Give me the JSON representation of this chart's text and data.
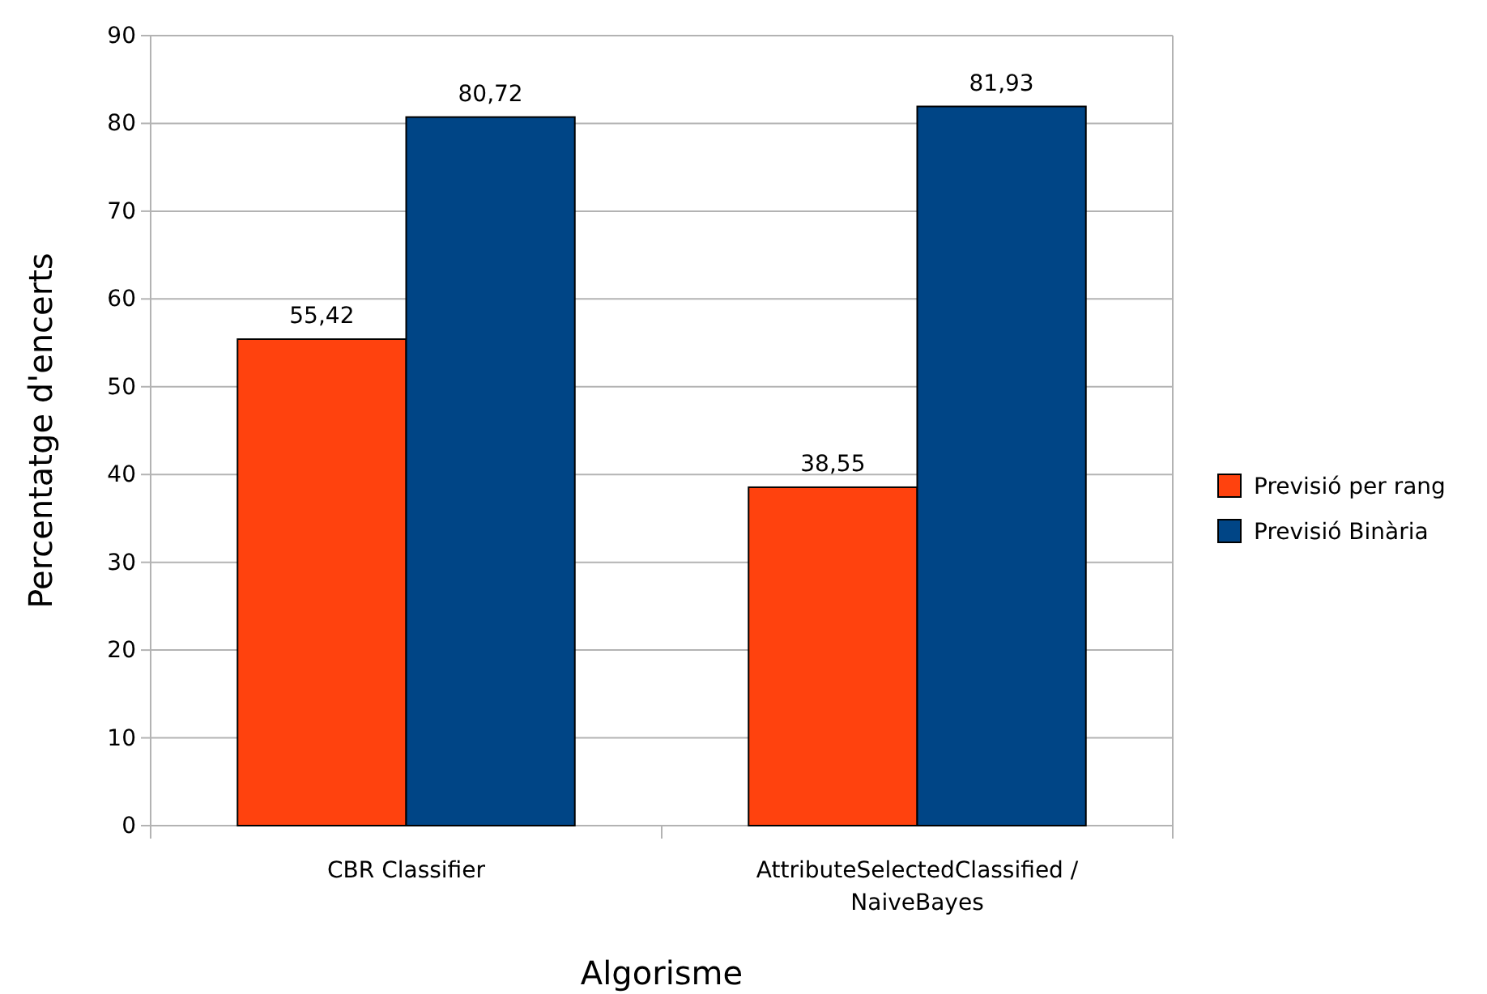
{
  "chart_data": {
    "type": "bar",
    "xlabel": "Algorisme",
    "ylabel": "Percentatge d'encerts",
    "categories": [
      "CBR Classifier",
      "AttributeSelectedClassified / NaiveBayes"
    ],
    "series": [
      {
        "name": "Previsió per rang",
        "color": "#ff420e",
        "values": [
          55.42,
          38.55
        ],
        "value_labels": [
          "55,42",
          "38,55"
        ]
      },
      {
        "name": "Previsió Binària",
        "color": "#004586",
        "values": [
          80.72,
          81.93
        ],
        "value_labels": [
          "80,72",
          "81,93"
        ]
      }
    ],
    "ylim": [
      0,
      90
    ],
    "yticks": [
      0,
      10,
      20,
      30,
      40,
      50,
      60,
      70,
      80,
      90
    ],
    "grid": "y",
    "legend": "right"
  }
}
